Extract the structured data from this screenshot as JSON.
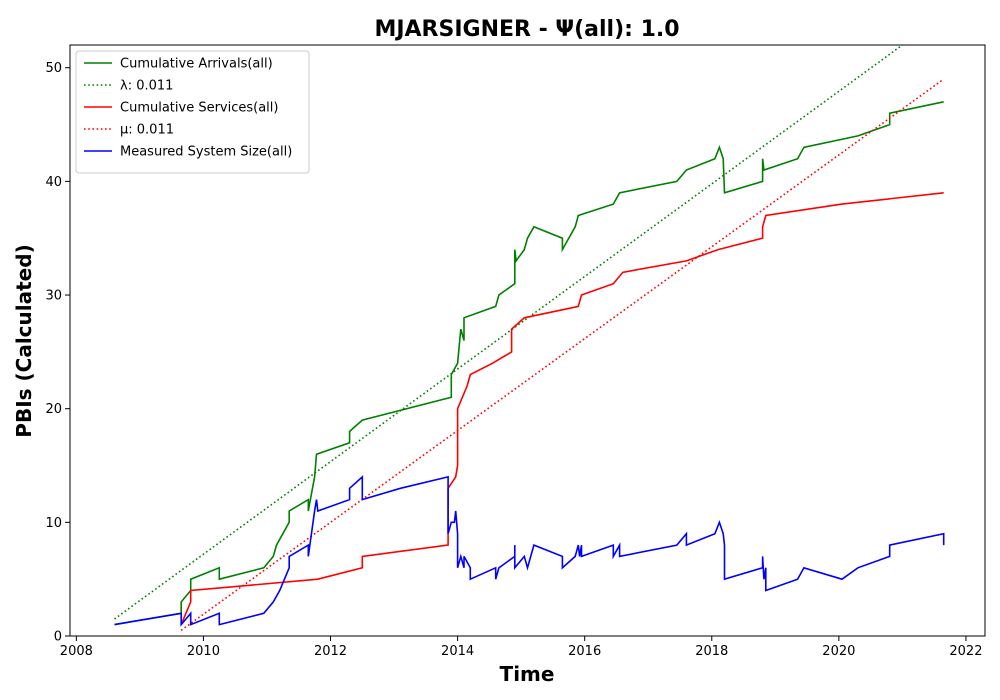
{
  "chart_data": {
    "type": "line",
    "title": "MJARSIGNER -  Ψ(all): 1.0",
    "xlabel": "Time",
    "ylabel": "PBIs (Calculated)",
    "xlim": [
      2007.9,
      2022.3
    ],
    "ylim": [
      0,
      52
    ],
    "xticks": [
      "2008",
      "2010",
      "2012",
      "2014",
      "2016",
      "2018",
      "2020",
      "2022"
    ],
    "yticks": [
      "0",
      "10",
      "20",
      "30",
      "40",
      "50"
    ],
    "legend_position": "top-left",
    "grid": false,
    "series": [
      {
        "name": "Cumulative Arrivals(all)",
        "color": "#008000",
        "style": "solid",
        "points": [
          [
            2008.6,
            1
          ],
          [
            2009.65,
            2
          ],
          [
            2009.65,
            3
          ],
          [
            2009.8,
            4
          ],
          [
            2009.8,
            5
          ],
          [
            2010.25,
            6
          ],
          [
            2010.25,
            5
          ],
          [
            2010.95,
            6
          ],
          [
            2011.1,
            7
          ],
          [
            2011.15,
            8
          ],
          [
            2011.35,
            10
          ],
          [
            2011.35,
            11
          ],
          [
            2011.65,
            12
          ],
          [
            2011.65,
            11
          ],
          [
            2011.75,
            14
          ],
          [
            2011.78,
            16
          ],
          [
            2012.3,
            17
          ],
          [
            2012.3,
            18
          ],
          [
            2012.5,
            19
          ],
          [
            2013.9,
            21
          ],
          [
            2013.9,
            23
          ],
          [
            2014.0,
            24
          ],
          [
            2014.05,
            27
          ],
          [
            2014.1,
            26
          ],
          [
            2014.1,
            28
          ],
          [
            2014.6,
            29
          ],
          [
            2014.65,
            30
          ],
          [
            2014.9,
            31
          ],
          [
            2014.9,
            34
          ],
          [
            2014.92,
            33
          ],
          [
            2015.05,
            34
          ],
          [
            2015.1,
            35
          ],
          [
            2015.2,
            36
          ],
          [
            2015.65,
            35
          ],
          [
            2015.65,
            34
          ],
          [
            2015.85,
            36
          ],
          [
            2015.9,
            37
          ],
          [
            2016.45,
            38
          ],
          [
            2016.55,
            39
          ],
          [
            2017.45,
            40
          ],
          [
            2017.6,
            41
          ],
          [
            2018.05,
            42
          ],
          [
            2018.12,
            43
          ],
          [
            2018.18,
            42
          ],
          [
            2018.2,
            39
          ],
          [
            2018.8,
            40
          ],
          [
            2018.8,
            42
          ],
          [
            2018.82,
            41
          ],
          [
            2019.35,
            42
          ],
          [
            2019.45,
            43
          ],
          [
            2020.3,
            44
          ],
          [
            2020.8,
            45
          ],
          [
            2020.8,
            46
          ],
          [
            2021.65,
            47
          ]
        ]
      },
      {
        "name": "λ: 0.011",
        "color": "#008000",
        "style": "dotted",
        "points": [
          [
            2008.6,
            1.5
          ],
          [
            2021.0,
            52
          ]
        ]
      },
      {
        "name": "Cumulative Services(all)",
        "color": "#ff0000",
        "style": "solid",
        "points": [
          [
            2009.65,
            1
          ],
          [
            2009.8,
            3
          ],
          [
            2009.8,
            4
          ],
          [
            2011.8,
            5
          ],
          [
            2012.5,
            6
          ],
          [
            2012.5,
            7
          ],
          [
            2013.85,
            8
          ],
          [
            2013.85,
            13
          ],
          [
            2013.97,
            14
          ],
          [
            2014.0,
            15
          ],
          [
            2014.0,
            20
          ],
          [
            2014.15,
            22
          ],
          [
            2014.2,
            23
          ],
          [
            2014.55,
            24
          ],
          [
            2014.85,
            25
          ],
          [
            2014.85,
            27
          ],
          [
            2015.05,
            28
          ],
          [
            2015.9,
            29
          ],
          [
            2015.95,
            30
          ],
          [
            2016.45,
            31
          ],
          [
            2016.6,
            32
          ],
          [
            2017.6,
            33
          ],
          [
            2018.1,
            34
          ],
          [
            2018.8,
            35
          ],
          [
            2018.8,
            36
          ],
          [
            2018.85,
            37
          ],
          [
            2020.05,
            38
          ],
          [
            2021.65,
            39
          ]
        ]
      },
      {
        "name": "μ: 0.011",
        "color": "#ff0000",
        "style": "dotted",
        "points": [
          [
            2009.65,
            0.5
          ],
          [
            2021.65,
            49
          ]
        ]
      },
      {
        "name": "Measured System Size(all)",
        "color": "#0000ff",
        "style": "solid",
        "points": [
          [
            2008.6,
            1
          ],
          [
            2009.65,
            2
          ],
          [
            2009.65,
            1
          ],
          [
            2009.8,
            2
          ],
          [
            2009.8,
            1
          ],
          [
            2010.25,
            2
          ],
          [
            2010.25,
            1
          ],
          [
            2010.95,
            2
          ],
          [
            2011.1,
            3
          ],
          [
            2011.2,
            4
          ],
          [
            2011.35,
            6
          ],
          [
            2011.35,
            7
          ],
          [
            2011.65,
            8
          ],
          [
            2011.65,
            7
          ],
          [
            2011.75,
            11
          ],
          [
            2011.78,
            12
          ],
          [
            2011.8,
            11
          ],
          [
            2012.3,
            12
          ],
          [
            2012.3,
            13
          ],
          [
            2012.5,
            14
          ],
          [
            2012.5,
            12
          ],
          [
            2013.1,
            13
          ],
          [
            2013.85,
            14
          ],
          [
            2013.85,
            9
          ],
          [
            2013.9,
            10
          ],
          [
            2013.95,
            10
          ],
          [
            2013.97,
            11
          ],
          [
            2014.0,
            9
          ],
          [
            2014.0,
            6
          ],
          [
            2014.05,
            7
          ],
          [
            2014.1,
            6
          ],
          [
            2014.1,
            7
          ],
          [
            2014.2,
            6
          ],
          [
            2014.2,
            5
          ],
          [
            2014.6,
            6
          ],
          [
            2014.6,
            5
          ],
          [
            2014.65,
            6
          ],
          [
            2014.9,
            7
          ],
          [
            2014.9,
            8
          ],
          [
            2014.9,
            6
          ],
          [
            2015.05,
            7
          ],
          [
            2015.1,
            6
          ],
          [
            2015.2,
            8
          ],
          [
            2015.65,
            7
          ],
          [
            2015.65,
            6
          ],
          [
            2015.85,
            7
          ],
          [
            2015.9,
            8
          ],
          [
            2015.92,
            7
          ],
          [
            2015.95,
            8
          ],
          [
            2015.95,
            7
          ],
          [
            2016.45,
            8
          ],
          [
            2016.45,
            7
          ],
          [
            2016.55,
            8
          ],
          [
            2016.55,
            7
          ],
          [
            2017.45,
            8
          ],
          [
            2017.6,
            9
          ],
          [
            2017.6,
            8
          ],
          [
            2018.05,
            9
          ],
          [
            2018.12,
            10
          ],
          [
            2018.18,
            9
          ],
          [
            2018.2,
            8
          ],
          [
            2018.2,
            5
          ],
          [
            2018.8,
            6
          ],
          [
            2018.8,
            7
          ],
          [
            2018.82,
            5
          ],
          [
            2018.85,
            6
          ],
          [
            2018.85,
            4
          ],
          [
            2019.35,
            5
          ],
          [
            2019.45,
            6
          ],
          [
            2020.05,
            5
          ],
          [
            2020.3,
            6
          ],
          [
            2020.8,
            7
          ],
          [
            2020.8,
            8
          ],
          [
            2021.65,
            9
          ],
          [
            2021.65,
            8
          ]
        ]
      }
    ]
  }
}
